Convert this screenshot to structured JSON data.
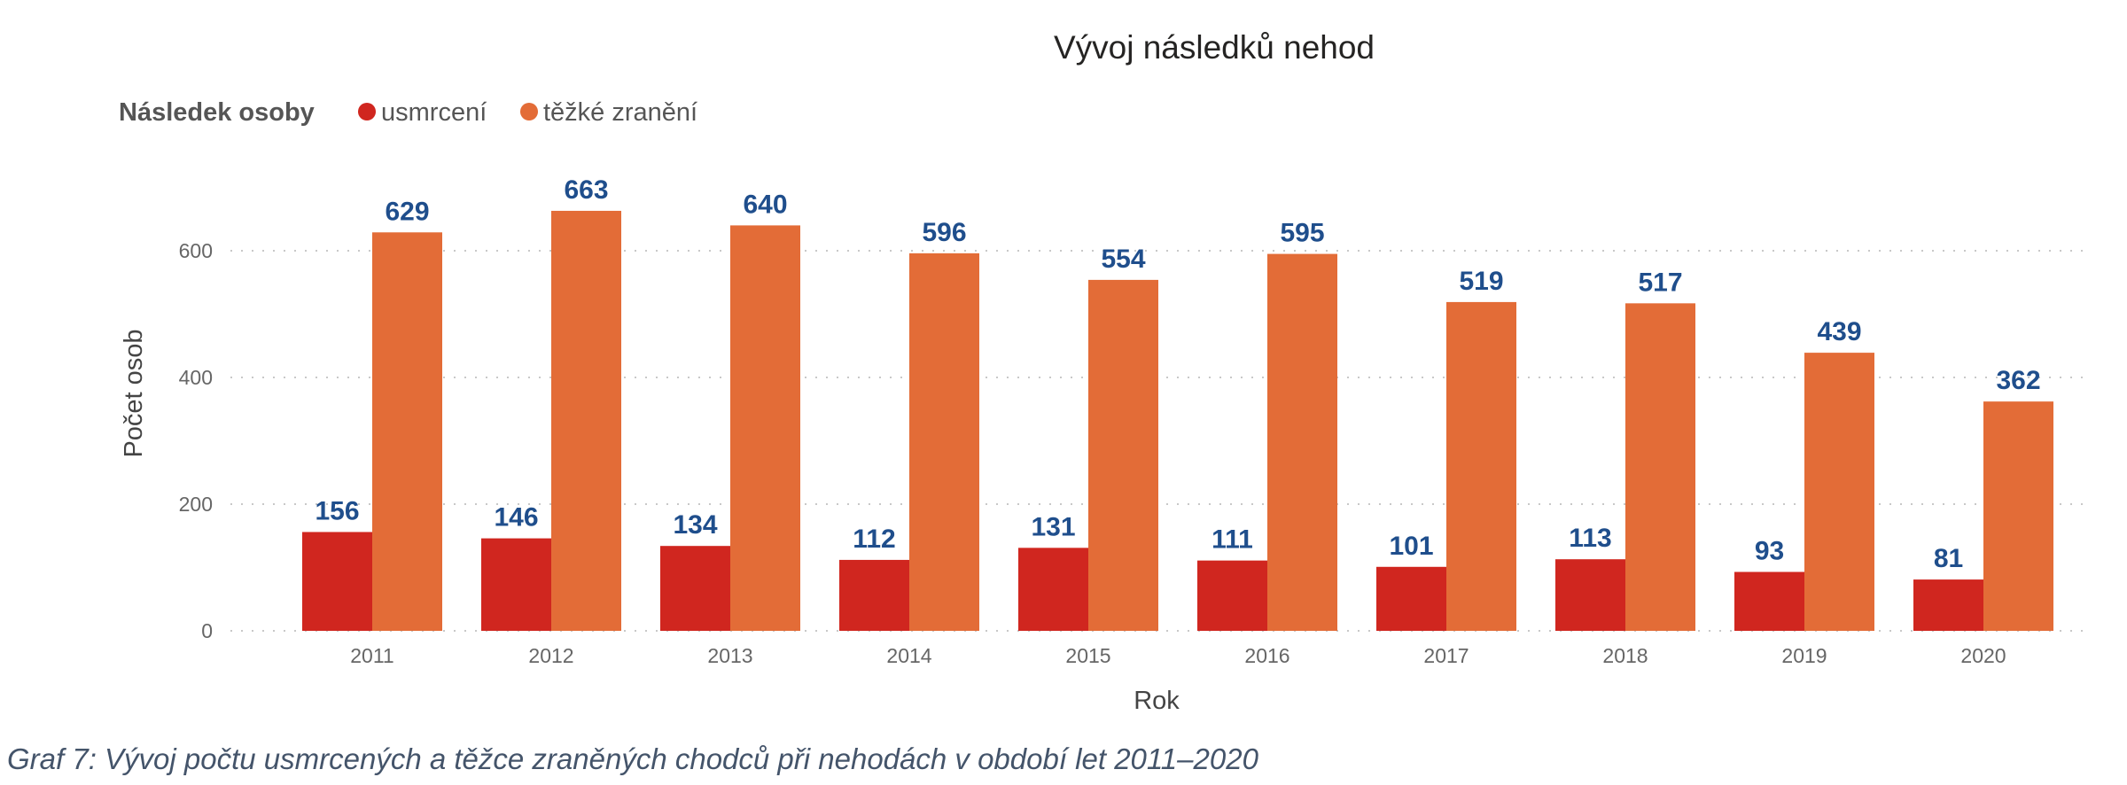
{
  "caption": "Graf 7: Vývoj počtu usmrcených a těžce zraněných chodců při nehodách v období let 2011–2020",
  "chart_data": {
    "type": "bar",
    "title": "Vývoj následků nehod",
    "legend_title": "Následek osoby",
    "legend_position": "top-left",
    "xlabel": "Rok",
    "ylabel": "Počet osob",
    "ylim": [
      0,
      700
    ],
    "yticks": [
      0,
      200,
      400,
      600
    ],
    "grid": true,
    "categories": [
      "2011",
      "2012",
      "2013",
      "2014",
      "2015",
      "2016",
      "2017",
      "2018",
      "2019",
      "2020"
    ],
    "series": [
      {
        "name": "usmrcení",
        "color": "#d0261f",
        "values": [
          156,
          146,
          134,
          112,
          131,
          111,
          101,
          113,
          93,
          81
        ]
      },
      {
        "name": "těžké zranění",
        "color": "#e36c37",
        "values": [
          629,
          663,
          640,
          596,
          554,
          595,
          519,
          517,
          439,
          362
        ]
      }
    ],
    "data_label_color": "#1f4e8c"
  }
}
